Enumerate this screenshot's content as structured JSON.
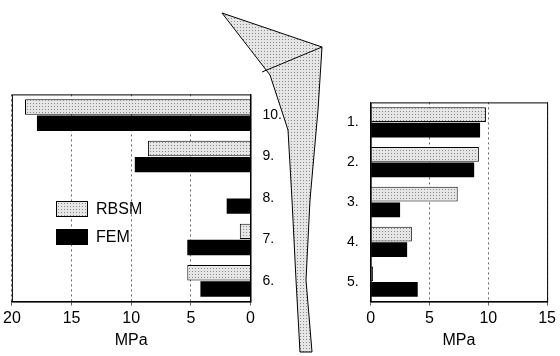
{
  "chart_data": [
    {
      "type": "bar",
      "orientation": "horizontal",
      "categories": [
        "10.",
        "9.",
        "8.",
        "7.",
        "6."
      ],
      "series": [
        {
          "name": "RBSM",
          "color": "#e6e6e6",
          "values": [
            18.9,
            8.6,
            0,
            0.9,
            5.3
          ]
        },
        {
          "name": "FEM",
          "color": "#000000",
          "values": [
            17.9,
            9.7,
            2.0,
            5.3,
            4.2
          ]
        }
      ],
      "x_label": "MPa",
      "xlim": [
        20,
        0
      ],
      "xticks": [
        20,
        15,
        10,
        5,
        0
      ],
      "grid": true,
      "legend": "left"
    },
    {
      "type": "bar",
      "orientation": "horizontal",
      "categories": [
        "1.",
        "2.",
        "3.",
        "4.",
        "5."
      ],
      "series": [
        {
          "name": "RBSM",
          "color": "#e6e6e6",
          "values": [
            9.8,
            9.2,
            7.4,
            3.5,
            0.2
          ]
        },
        {
          "name": "FEM",
          "color": "#000000",
          "values": [
            9.3,
            8.8,
            2.5,
            3.1,
            4.0
          ]
        }
      ],
      "x_label": "MPa",
      "xlim": [
        0,
        15
      ],
      "xticks": [
        0,
        5,
        10,
        15
      ],
      "grid": true
    }
  ]
}
